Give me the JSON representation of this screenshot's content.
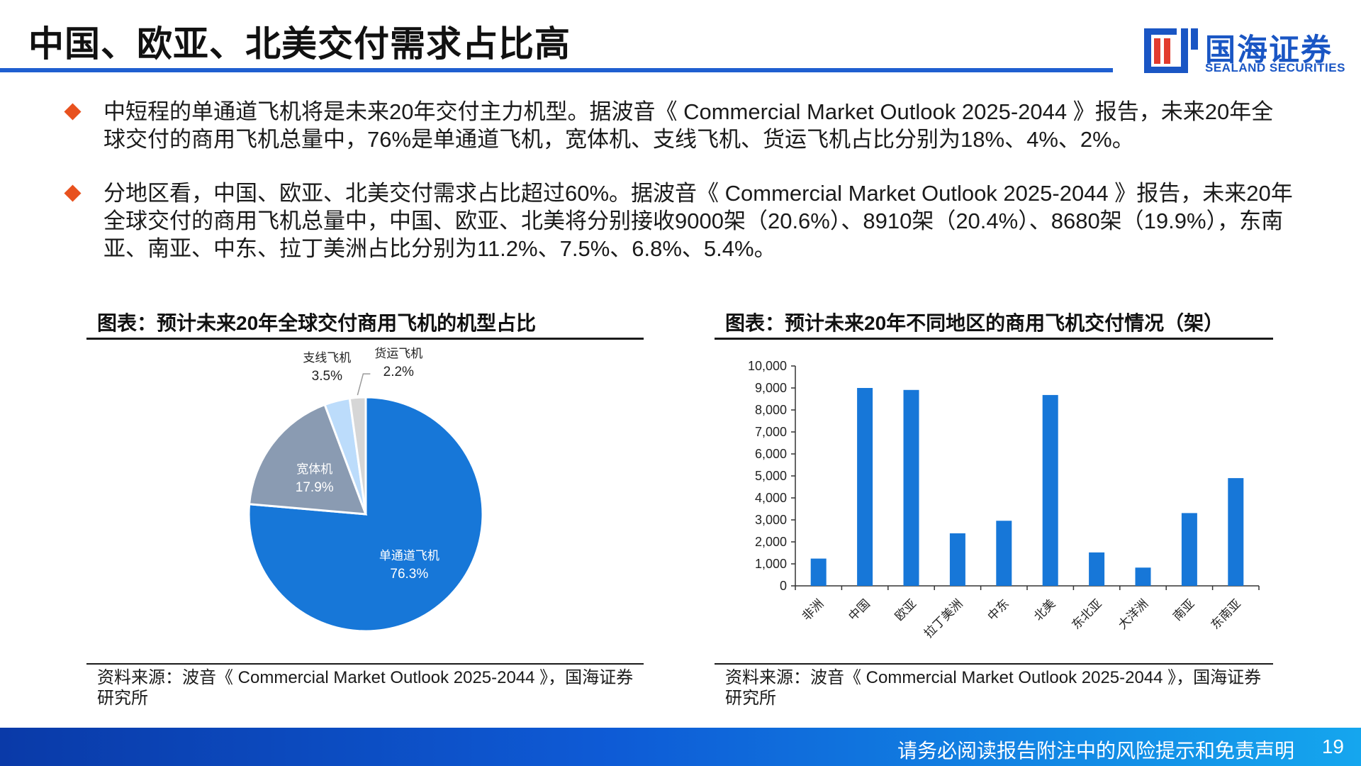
{
  "header": {
    "title": "中国、欧亚、北美交付需求占比高",
    "logo_cn": "国海证券",
    "logo_en": "SEALAND SECURITIES"
  },
  "bullets": [
    "中短程的单通道飞机将是未来20年交付主力机型。据波音《 Commercial Market Outlook 2025-2044 》报告，未来20年全球交付的商用飞机总量中，76%是单通道飞机，宽体机、支线飞机、货运飞机占比分别为18%、4%、2%。",
    "分地区看，中国、欧亚、北美交付需求占比超过60%。据波音《 Commercial Market Outlook 2025-2044 》报告，未来20年全球交付的商用飞机总量中，中国、欧亚、北美将分别接收9000架（20.6%）、8910架（20.4%）、8680架（19.9%），东南亚、南亚、中东、拉丁美洲占比分别为11.2%、7.5%、6.8%、5.4%。"
  ],
  "charts": {
    "left_title": "图表：预计未来20年全球交付商用飞机的机型占比",
    "right_title": "图表：预计未来20年不同地区的商用飞机交付情况（架）",
    "left_source": "资料来源：波音《 Commercial Market Outlook 2025-2044 》，国海证券研究所",
    "right_source": "资料来源：波音《 Commercial Market Outlook 2025-2044 》，国海证券研究所"
  },
  "footer": {
    "disclaimer": "请务必阅读报告附注中的风险提示和免责声明",
    "page": "19"
  },
  "colors": {
    "accent": "#1f5fd0",
    "bullet": "#e8511e",
    "pie": [
      "#1777d8",
      "#8a9bb2",
      "#bcdcfb",
      "#d6d6d6"
    ],
    "bar": "#1777d8"
  },
  "chart_data": [
    {
      "type": "pie",
      "title": "图表：预计未来20年全球交付商用飞机的机型占比",
      "slices": [
        {
          "name": "单通道飞机",
          "value": 76.3,
          "label": "76.3%"
        },
        {
          "name": "宽体机",
          "value": 17.9,
          "label": "17.9%"
        },
        {
          "name": "支线飞机",
          "value": 3.5,
          "label": "3.5%"
        },
        {
          "name": "货运飞机",
          "value": 2.2,
          "label": "2.2%"
        }
      ]
    },
    {
      "type": "bar",
      "title": "图表：预计未来20年不同地区的商用飞机交付情况（架）",
      "categories": [
        "非洲",
        "中国",
        "欧亚",
        "拉丁美洲",
        "中东",
        "北美",
        "东北亚",
        "大洋洲",
        "南亚",
        "东南亚"
      ],
      "values": [
        1240,
        9000,
        8910,
        2390,
        2960,
        8680,
        1520,
        830,
        3310,
        4900
      ],
      "ylim": [
        0,
        10000
      ],
      "yticks": [
        0,
        1000,
        2000,
        3000,
        4000,
        5000,
        6000,
        7000,
        8000,
        9000,
        10000
      ],
      "ytick_labels": [
        "0",
        "1,000",
        "2,000",
        "3,000",
        "4,000",
        "5,000",
        "6,000",
        "7,000",
        "8,000",
        "9,000",
        "10,000"
      ],
      "xlabel": "",
      "ylabel": ""
    }
  ]
}
